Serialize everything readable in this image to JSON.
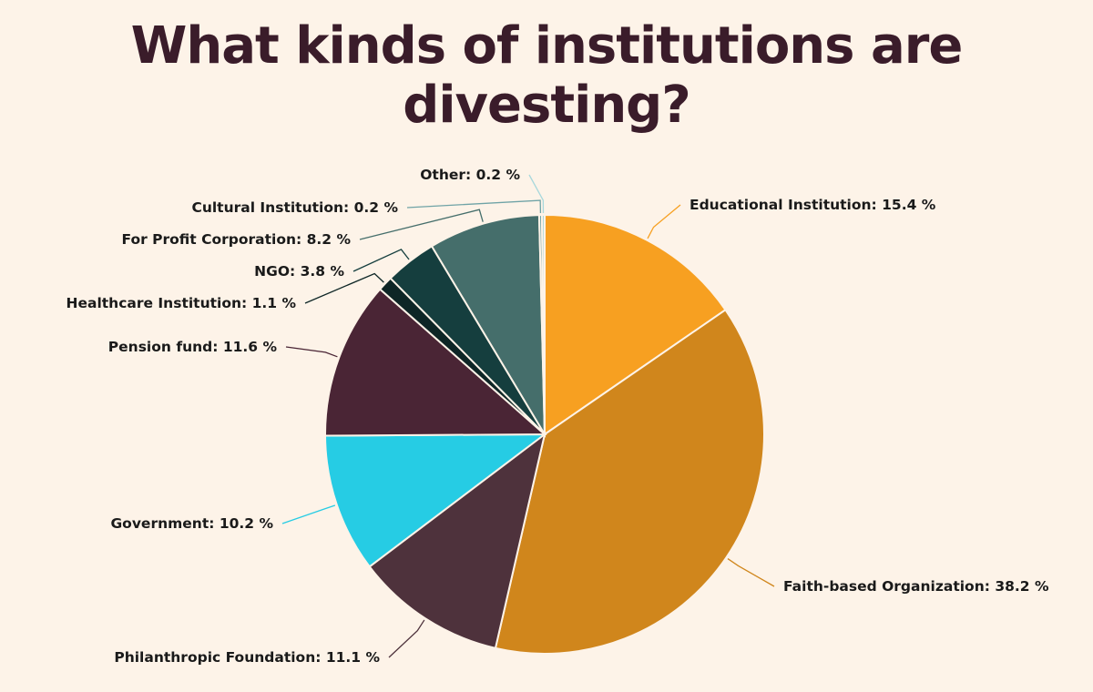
{
  "chart_data": {
    "type": "pie",
    "title": "What kinds of institutions are divesting?",
    "start": "top",
    "direction": "clockwise",
    "slices": [
      {
        "label": "Educational Institution",
        "value": 15.4,
        "color": "#F7A021"
      },
      {
        "label": "Faith-based Organization",
        "value": 38.2,
        "color": "#D0861C"
      },
      {
        "label": "Philanthropic Foundation",
        "value": 11.1,
        "color": "#4E323C"
      },
      {
        "label": "Government",
        "value": 10.2,
        "color": "#26CCE4"
      },
      {
        "label": "Pension fund",
        "value": 11.6,
        "color": "#4A2535"
      },
      {
        "label": "Healthcare Institution",
        "value": 1.1,
        "color": "#0E2626"
      },
      {
        "label": "NGO",
        "value": 3.8,
        "color": "#153E3E"
      },
      {
        "label": "For Profit Corporation",
        "value": 8.2,
        "color": "#456E6B"
      },
      {
        "label": "Cultural Institution",
        "value": 0.2,
        "color": "#6FA3A6"
      },
      {
        "label": "Other",
        "value": 0.2,
        "color": "#A8D8DC"
      }
    ],
    "label_format": "{label}: {value} %"
  }
}
